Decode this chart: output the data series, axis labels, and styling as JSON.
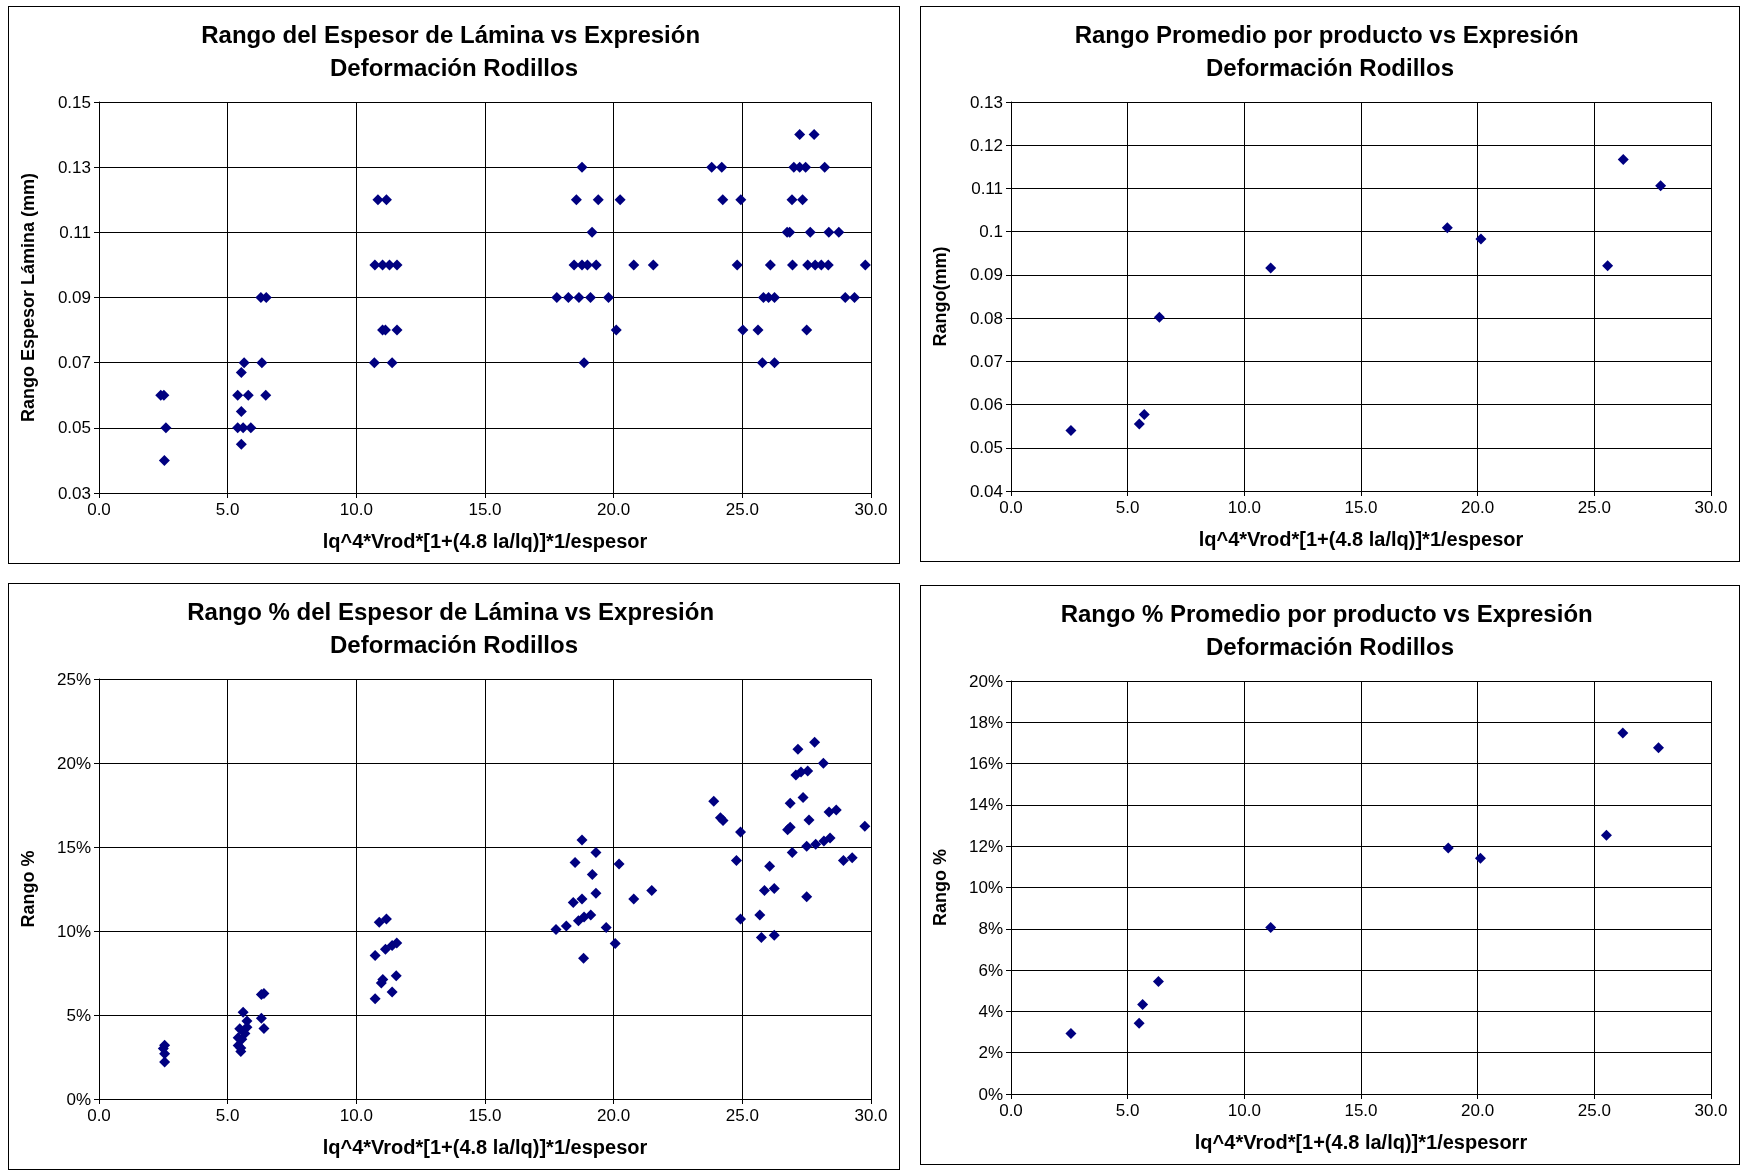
{
  "chart_data": [
    {
      "type": "scatter",
      "title": "Rango del Espesor de Lámina vs Expresión Deformación Rodillos",
      "xlabel": "lq^4*Vrod*[1+(4.8 la/lq)]*1/espesor",
      "ylabel": "Rango Espesor Lámina (mm)",
      "marker": "diamond",
      "grid": true,
      "xlim": [
        0,
        30
      ],
      "xticks": [
        {
          "value": 0,
          "label": "0.0"
        },
        {
          "value": 5,
          "label": "5.0"
        },
        {
          "value": 10,
          "label": "10.0"
        },
        {
          "value": 15,
          "label": "15.0"
        },
        {
          "value": 20,
          "label": "20.0"
        },
        {
          "value": 25,
          "label": "25.0"
        },
        {
          "value": 30,
          "label": "30.0"
        }
      ],
      "ylim": [
        0.03,
        0.15
      ],
      "yticks": [
        0.03,
        0.05,
        0.07,
        0.09,
        0.11,
        0.13,
        0.15
      ],
      "series": [
        {
          "color": "#000080",
          "x": [
            2.4,
            2.52,
            2.6,
            2.54,
            5.39,
            5.8,
            5.53,
            5.39,
            5.6,
            5.9,
            5.53,
            5.53,
            5.64,
            6.33,
            6.48,
            6.29,
            6.5,
            10.84,
            11.17,
            10.72,
            11.02,
            11.29,
            11.58,
            11.02,
            11.13,
            11.58,
            10.7,
            11.39,
            18.77,
            18.55,
            19.4,
            20.25,
            19.16,
            18.46,
            18.77,
            18.98,
            19.32,
            20.78,
            21.54,
            17.79,
            18.24,
            18.65,
            19.1,
            19.8,
            20.1,
            18.85,
            23.81,
            24.2,
            24.24,
            24.94,
            24.8,
            26.09,
            25.82,
            26.02,
            26.25,
            25.02,
            25.61,
            25.78,
            26.25,
            27.23,
            27.79,
            27.0,
            27.23,
            27.46,
            28.2,
            26.93,
            27.34,
            26.74,
            26.84,
            27.64,
            28.36,
            28.75,
            26.95,
            27.54,
            27.83,
            28.07,
            28.34,
            29.78,
            29.0,
            29.36,
            27.5
          ],
          "values": [
            0.06,
            0.06,
            0.05,
            0.04,
            0.06,
            0.06,
            0.055,
            0.05,
            0.05,
            0.05,
            0.045,
            0.067,
            0.07,
            0.07,
            0.06,
            0.09,
            0.09,
            0.12,
            0.12,
            0.1,
            0.1,
            0.1,
            0.1,
            0.08,
            0.08,
            0.08,
            0.07,
            0.07,
            0.13,
            0.12,
            0.12,
            0.12,
            0.11,
            0.1,
            0.1,
            0.1,
            0.1,
            0.1,
            0.1,
            0.09,
            0.09,
            0.09,
            0.09,
            0.09,
            0.08,
            0.07,
            0.13,
            0.13,
            0.12,
            0.12,
            0.1,
            0.1,
            0.09,
            0.09,
            0.09,
            0.08,
            0.08,
            0.07,
            0.07,
            0.14,
            0.14,
            0.13,
            0.13,
            0.13,
            0.13,
            0.12,
            0.12,
            0.11,
            0.11,
            0.11,
            0.11,
            0.11,
            0.1,
            0.1,
            0.1,
            0.1,
            0.1,
            0.1,
            0.09,
            0.09,
            0.08
          ]
        }
      ]
    },
    {
      "type": "scatter",
      "title": "Rango Promedio por producto vs Expresión Deformación Rodillos",
      "xlabel": "lq^4*Vrod*[1+(4.8 la/lq)]*1/espesor",
      "ylabel": "Rango(mm)",
      "marker": "diamond",
      "grid": true,
      "xlim": [
        0,
        30
      ],
      "xticks": [
        {
          "value": 0,
          "label": "0.0"
        },
        {
          "value": 5,
          "label": "5.0"
        },
        {
          "value": 10,
          "label": "10.0"
        },
        {
          "value": 15,
          "label": "15.0"
        },
        {
          "value": 20,
          "label": "20.0"
        },
        {
          "value": 25,
          "label": "25.0"
        },
        {
          "value": 30,
          "label": "30.0"
        }
      ],
      "ylim": [
        0.04,
        0.13
      ],
      "yticks": [
        0.04,
        0.05,
        0.06,
        0.07,
        0.08,
        0.09,
        0.1,
        0.11,
        0.12,
        0.13
      ],
      "series": [
        {
          "color": "#000080",
          "x": [
            2.57,
            5.5,
            5.71,
            6.36,
            11.13,
            18.7,
            20.14,
            25.57,
            26.24,
            27.84
          ],
          "values": [
            0.054,
            0.0555,
            0.0577,
            0.0802,
            0.0916,
            0.1009,
            0.0983,
            0.0921,
            0.1167,
            0.1106
          ]
        }
      ]
    },
    {
      "type": "scatter",
      "title": "Rango % del Espesor de Lámina vs Expresión Deformación Rodillos",
      "xlabel": "lq^4*Vrod*[1+(4.8 la/lq)]*1/espesor",
      "ylabel": "Rango %",
      "marker": "diamond",
      "grid": true,
      "xlim": [
        0,
        30
      ],
      "xticks": [
        {
          "value": 0,
          "label": "0.0"
        },
        {
          "value": 5,
          "label": "5.0"
        },
        {
          "value": 10,
          "label": "10.0"
        },
        {
          "value": 15,
          "label": "15.0"
        },
        {
          "value": 20,
          "label": "20.0"
        },
        {
          "value": 25,
          "label": "25.0"
        },
        {
          "value": 30,
          "label": "30.0"
        }
      ],
      "ylim": [
        0,
        25
      ],
      "yticks": [
        {
          "value": 0,
          "label": "0%"
        },
        {
          "value": 5,
          "label": "5%"
        },
        {
          "value": 10,
          "label": "10%"
        },
        {
          "value": 15,
          "label": "15%"
        },
        {
          "value": 20,
          "label": "20%"
        },
        {
          "value": 25,
          "label": "25%"
        }
      ],
      "series": [
        {
          "color": "#000080",
          "x": [
            2.55,
            2.5,
            2.55,
            2.55,
            5.6,
            5.47,
            5.75,
            5.41,
            5.67,
            5.41,
            5.51,
            5.75,
            6.31,
            6.41,
            6.31,
            6.41,
            5.55,
            5.51,
            10.89,
            11.17,
            10.73,
            11.13,
            11.39,
            11.57,
            11.03,
            10.97,
            11.55,
            10.73,
            11.39,
            18.77,
            18.5,
            19.31,
            19.17,
            20.21,
            19.31,
            18.43,
            18.77,
            20.78,
            21.48,
            17.76,
            18.16,
            18.63,
            19.11,
            18.85,
            19.71,
            20.06,
            18.83,
            23.89,
            24.15,
            24.25,
            24.93,
            24.77,
            26.06,
            24.93,
            25.68,
            25.86,
            26.24,
            25.74,
            26.24,
            27.16,
            27.81,
            28.15,
            27.08,
            27.28,
            27.54,
            27.36,
            26.86,
            27.59,
            26.76,
            26.86,
            28.37,
            28.65,
            26.94,
            27.5,
            27.85,
            28.17,
            28.41,
            27.5,
            28.93,
            29.27,
            29.76
          ],
          "values": [
            3.2,
            3.0,
            2.7,
            2.2,
            5.17,
            4.18,
            4.64,
            3.65,
            3.9,
            3.19,
            2.82,
            4.27,
            6.22,
            6.28,
            4.8,
            4.2,
            3.56,
            3.03,
            10.52,
            10.71,
            8.54,
            8.91,
            9.13,
            9.28,
            7.12,
            6.9,
            7.33,
            5.97,
            6.37,
            15.41,
            14.08,
            14.67,
            13.37,
            13.99,
            12.25,
            11.7,
            11.91,
            11.91,
            12.41,
            10.09,
            10.3,
            10.61,
            10.95,
            10.83,
            10.21,
            9.25,
            8.38,
            17.73,
            16.74,
            16.58,
            15.9,
            14.2,
            13.86,
            10.71,
            10.95,
            12.41,
            12.53,
            9.62,
            9.75,
            20.82,
            21.23,
            19.99,
            19.28,
            19.46,
            19.52,
            17.95,
            17.6,
            16.61,
            16.03,
            16.18,
            17.08,
            17.2,
            14.67,
            15.04,
            15.16,
            15.35,
            15.53,
            12.04,
            14.2,
            14.36,
            16.24
          ]
        }
      ]
    },
    {
      "type": "scatter",
      "title": "Rango % Promedio por producto vs Expresión Deformación Rodillos",
      "xlabel": "lq^4*Vrod*[1+(4.8 la/lq)]*1/espesorr",
      "ylabel": "Rango %",
      "marker": "diamond",
      "grid": true,
      "xlim": [
        0,
        30
      ],
      "xticks": [
        {
          "value": 0,
          "label": "0.0"
        },
        {
          "value": 5,
          "label": "5.0"
        },
        {
          "value": 10,
          "label": "10.0"
        },
        {
          "value": 15,
          "label": "15.0"
        },
        {
          "value": 20,
          "label": "20.0"
        },
        {
          "value": 25,
          "label": "25.0"
        },
        {
          "value": 30,
          "label": "30.0"
        }
      ],
      "ylim": [
        0,
        20
      ],
      "yticks": [
        {
          "value": 0,
          "label": "0%"
        },
        {
          "value": 2,
          "label": "2%"
        },
        {
          "value": 4,
          "label": "4%"
        },
        {
          "value": 6,
          "label": "6%"
        },
        {
          "value": 8,
          "label": "8%"
        },
        {
          "value": 10,
          "label": "10%"
        },
        {
          "value": 12,
          "label": "12%"
        },
        {
          "value": 14,
          "label": "14%"
        },
        {
          "value": 16,
          "label": "16%"
        },
        {
          "value": 18,
          "label": "18%"
        },
        {
          "value": 20,
          "label": "20%"
        }
      ],
      "series": [
        {
          "color": "#000080",
          "x": [
            2.57,
            5.49,
            5.64,
            6.32,
            11.13,
            18.74,
            20.12,
            25.52,
            26.22,
            27.75
          ],
          "values": [
            2.93,
            3.43,
            4.34,
            5.45,
            8.06,
            11.91,
            11.42,
            12.53,
            17.48,
            16.77
          ]
        }
      ]
    }
  ]
}
